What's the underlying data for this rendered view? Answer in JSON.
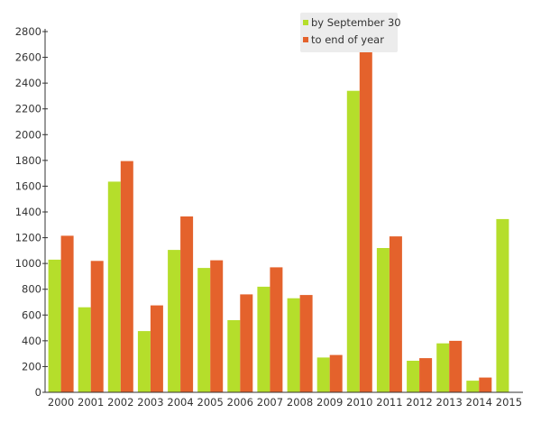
{
  "chart_data": {
    "type": "bar",
    "categories": [
      "2000",
      "2001",
      "2002",
      "2003",
      "2004",
      "2005",
      "2006",
      "2007",
      "2008",
      "2009",
      "2010",
      "2011",
      "2012",
      "2013",
      "2014",
      "2015"
    ],
    "series": [
      {
        "name": "by September 30",
        "color": "#b5de2b",
        "values": [
          1030,
          660,
          1635,
          475,
          1105,
          965,
          560,
          820,
          730,
          270,
          2340,
          1120,
          245,
          380,
          90,
          1345
        ]
      },
      {
        "name": "to end of year",
        "color": "#e4622c",
        "values": [
          1215,
          1020,
          1795,
          675,
          1365,
          1025,
          760,
          970,
          755,
          290,
          2730,
          1210,
          265,
          400,
          115,
          null
        ]
      }
    ],
    "yticks": [
      0,
      200,
      400,
      600,
      800,
      1000,
      1200,
      1400,
      1600,
      1800,
      2000,
      2200,
      2400,
      2600,
      2800
    ],
    "ylim": [
      0,
      2800
    ],
    "xlabel": "",
    "ylabel": "",
    "title": "",
    "grid": false,
    "legend_position": "top-right"
  }
}
